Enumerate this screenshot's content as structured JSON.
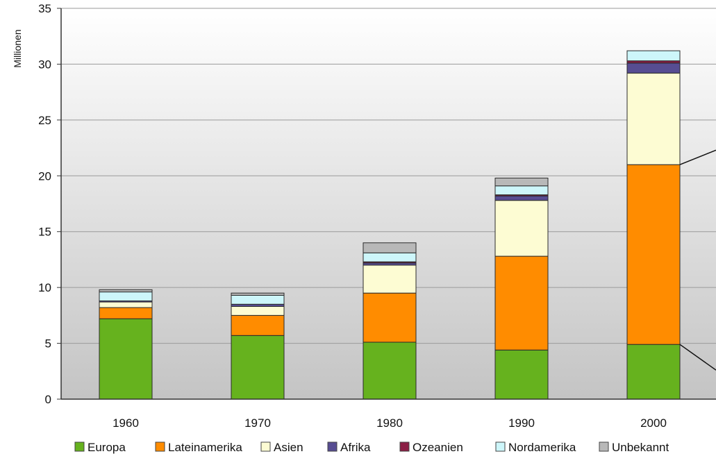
{
  "chart_data": {
    "type": "bar",
    "stacked": true,
    "title": "",
    "xlabel": "",
    "ylabel": "Millionen",
    "ylim": [
      0,
      35
    ],
    "yticks": [
      0,
      5,
      10,
      15,
      20,
      25,
      30,
      35
    ],
    "grid": true,
    "legend_position": "bottom",
    "categories": [
      "1960",
      "1970",
      "1980",
      "1990",
      "2000"
    ],
    "series": [
      {
        "name": "Europa",
        "color": "#66b21e",
        "values": [
          7.2,
          5.7,
          5.1,
          4.4,
          4.9
        ]
      },
      {
        "name": "Lateinamerika",
        "color": "#ff8c00",
        "values": [
          1.0,
          1.8,
          4.4,
          8.4,
          16.1
        ]
      },
      {
        "name": "Asien",
        "color": "#fdfcd3",
        "values": [
          0.5,
          0.8,
          2.5,
          5.0,
          8.2
        ]
      },
      {
        "name": "Afrika",
        "color": "#574d92",
        "values": [
          0.1,
          0.2,
          0.2,
          0.4,
          0.9
        ]
      },
      {
        "name": "Ozeanien",
        "color": "#8b1e44",
        "values": [
          0.0,
          0.0,
          0.1,
          0.1,
          0.2
        ]
      },
      {
        "name": "Nordamerika",
        "color": "#cdf6fa",
        "values": [
          0.8,
          0.8,
          0.8,
          0.8,
          0.9
        ]
      },
      {
        "name": "Unbekannt",
        "color": "#b8b8b8",
        "values": [
          0.2,
          0.2,
          0.9,
          0.7,
          0.0
        ]
      }
    ]
  }
}
